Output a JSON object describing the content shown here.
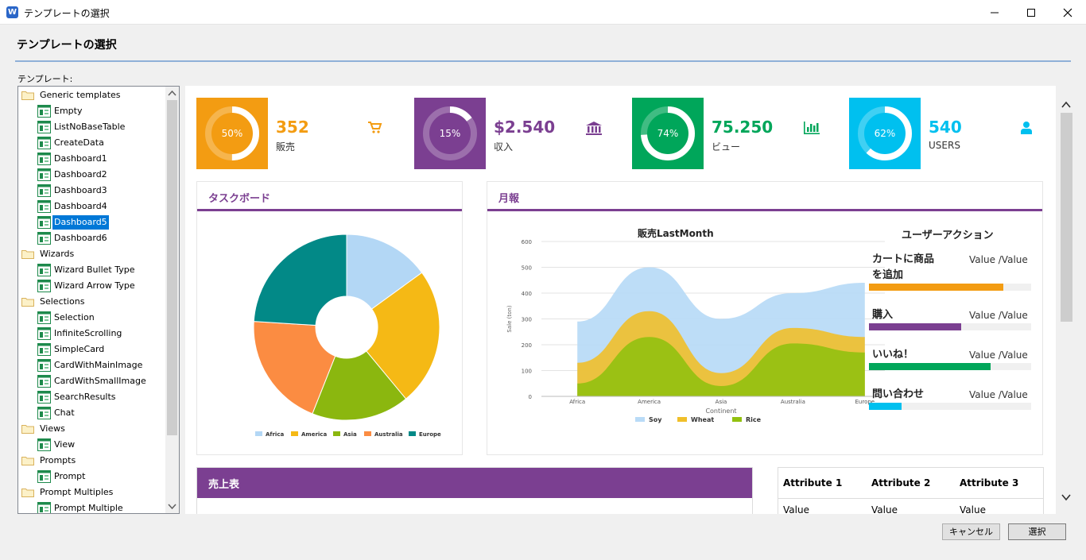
{
  "window": {
    "title": "テンプレートの選択"
  },
  "header": {
    "title": "テンプレートの選択"
  },
  "tree": {
    "label": "テンプレート:",
    "groups": [
      {
        "label": "Generic templates",
        "items": [
          "Empty",
          "ListNoBaseTable",
          "CreateData",
          "Dashboard1",
          "Dashboard2",
          "Dashboard3",
          "Dashboard4",
          "Dashboard5",
          "Dashboard6"
        ]
      },
      {
        "label": "Wizards",
        "items": [
          "Wizard Bullet Type",
          "Wizard Arrow Type"
        ]
      },
      {
        "label": "Selections",
        "items": [
          "Selection",
          "InfiniteScrolling",
          "SimpleCard",
          "CardWithMainImage",
          "CardWithSmallImage",
          "SearchResults",
          "Chat"
        ]
      },
      {
        "label": "Views",
        "items": [
          "View"
        ]
      },
      {
        "label": "Prompts",
        "items": [
          "Prompt"
        ]
      },
      {
        "label": "Prompt Multiples",
        "items": [
          "Prompt Multiple"
        ]
      }
    ],
    "selected": "Dashboard5"
  },
  "kpis": [
    {
      "percent": 50,
      "percent_label": "50%",
      "value": "352",
      "label": "販売",
      "color": "#f39c12",
      "icon": "cart-icon"
    },
    {
      "percent": 15,
      "percent_label": "15%",
      "value": "$2.540",
      "label": "収入",
      "color": "#7b3f91",
      "icon": "bank-icon"
    },
    {
      "percent": 74,
      "percent_label": "74%",
      "value": "75.250",
      "label": "ビュー",
      "color": "#00a65a",
      "icon": "bar-chart-icon"
    },
    {
      "percent": 62,
      "percent_label": "62%",
      "value": "540",
      "label": "USERS",
      "color": "#00c0ef",
      "icon": "user-icon"
    }
  ],
  "task_board": {
    "title": "タスクボード",
    "chart_data": {
      "type": "pie",
      "labels": [
        "Africa",
        "America",
        "Asia",
        "Australia",
        "Europe"
      ],
      "values": [
        15,
        24,
        17,
        20,
        24
      ],
      "colors": [
        "#b3d7f5",
        "#f5b915",
        "#8bb70f",
        "#fb8c42",
        "#028987"
      ],
      "legend_position": "bottom"
    }
  },
  "monthly": {
    "title": "月報",
    "chart_title": "販売LastMonth",
    "chart_data": {
      "type": "area",
      "categories": [
        "Africa",
        "America",
        "Asia",
        "Australia",
        "Europe"
      ],
      "series": [
        {
          "name": "Soy",
          "values": [
            290,
            500,
            300,
            400,
            440
          ],
          "color": "#b9dbf7"
        },
        {
          "name": "Wheat",
          "values": [
            130,
            330,
            90,
            265,
            230
          ],
          "color": "#f0bf2a"
        },
        {
          "name": "Rice",
          "values": [
            50,
            230,
            40,
            205,
            170
          ],
          "color": "#92c110"
        }
      ],
      "xlabel": "Continent",
      "ylabel": "Sale (ton)",
      "ylim": [
        0,
        600
      ],
      "yticks": [
        0,
        100,
        200,
        300,
        400,
        500,
        600
      ],
      "legend_position": "bottom"
    },
    "user_actions": {
      "title": "ユーザーアクション",
      "items": [
        {
          "label": "カートに商品を追加",
          "value": "Value /Value",
          "fraction": 0.83,
          "color": "#f39c12"
        },
        {
          "label": "購入",
          "value": "Value /Value",
          "fraction": 0.57,
          "color": "#7b3f91"
        },
        {
          "label": "いいね！",
          "value": "Value /Value",
          "fraction": 0.75,
          "color": "#00a65a"
        },
        {
          "label": "問い合わせ",
          "value": "Value /Value",
          "fraction": 0.2,
          "color": "#00c0ef"
        }
      ]
    }
  },
  "sales_table": {
    "title": "売上表"
  },
  "attributes": {
    "headers": [
      "Attribute 1",
      "Attribute 2",
      "Attribute 3"
    ],
    "row": [
      "Value",
      "Value",
      "Value"
    ]
  },
  "buttons": {
    "cancel": "キャンセル",
    "select": "選択"
  }
}
